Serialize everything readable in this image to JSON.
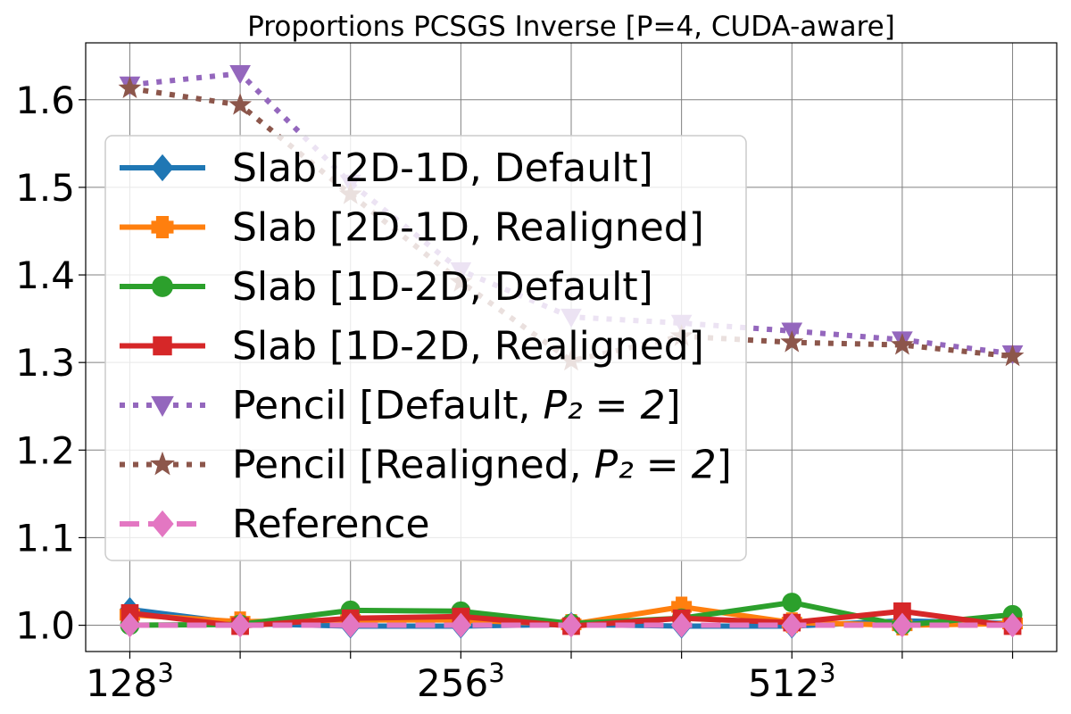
{
  "chart_data": {
    "type": "line",
    "title": "Proportions PCSGS Inverse [P=4, CUDA-aware]",
    "xlabel": "",
    "ylabel": "",
    "x_tick_labels": [
      {
        "x": 0,
        "base": "128",
        "exp": "3"
      },
      {
        "x": 3,
        "base": "256",
        "exp": "3"
      },
      {
        "x": 6,
        "base": "512",
        "exp": "3"
      }
    ],
    "y_ticks": [
      "1.0",
      "1.1",
      "1.2",
      "1.3",
      "1.4",
      "1.5",
      "1.6"
    ],
    "ylim": [
      0.97,
      1.665
    ],
    "xlim": [
      -0.4,
      8.4
    ],
    "grid": true,
    "legend_position": "center-left",
    "series": [
      {
        "name": "Slab [2D-1D, Default]",
        "color": "#1f77b4",
        "style": "solid",
        "marker": "diamond",
        "values": [
          1.018,
          1.002,
          0.999,
          0.999,
          1.001,
          0.999,
          0.999,
          1.005,
          1.002
        ]
      },
      {
        "name": "Slab [2D-1D, Realigned]",
        "color": "#ff7f0e",
        "style": "solid",
        "marker": "plus-filled",
        "values": [
          1.012,
          1.004,
          1.006,
          1.006,
          1.001,
          1.021,
          1.003,
          1.0,
          1.002
        ]
      },
      {
        "name": "Slab [1D-2D, Default]",
        "color": "#2ca02c",
        "style": "solid",
        "marker": "circle",
        "values": [
          1.0,
          1.001,
          1.017,
          1.016,
          1.002,
          1.008,
          1.026,
          1.0,
          1.012
        ]
      },
      {
        "name": "Slab [1D-2D, Realigned]",
        "color": "#d62728",
        "style": "solid",
        "marker": "square",
        "values": [
          1.014,
          0.999,
          1.008,
          1.01,
          0.999,
          1.008,
          1.003,
          1.016,
          0.999
        ]
      },
      {
        "name_prefix": "Pencil [Default, ",
        "name_math": "P₂ = 2",
        "name_suffix": "]",
        "color": "#9467bd",
        "style": "dotted",
        "marker": "triangle-down",
        "values": [
          1.617,
          1.63,
          1.505,
          1.405,
          1.352,
          1.345,
          1.336,
          1.326,
          1.31
        ]
      },
      {
        "name_prefix": "Pencil [Realigned, ",
        "name_math": "P₂ = 2",
        "name_suffix": "]",
        "color": "#8c564b",
        "style": "dotted",
        "marker": "star",
        "values": [
          1.613,
          1.594,
          1.492,
          1.392,
          1.302,
          1.33,
          1.323,
          1.32,
          1.307
        ]
      },
      {
        "name": "Reference",
        "color": "#e377c2",
        "style": "dashed",
        "marker": "diamond",
        "values": [
          1.0,
          1.0,
          1.0,
          1.0,
          1.0,
          1.0,
          1.0,
          1.0,
          1.0
        ]
      }
    ]
  }
}
